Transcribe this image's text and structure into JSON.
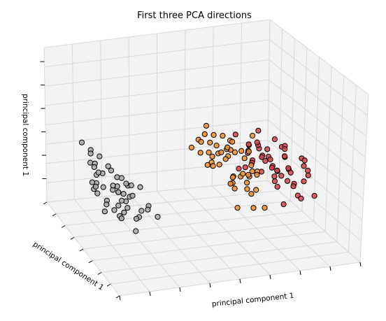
{
  "chart_data": {
    "type": "scatter",
    "projection": "3d",
    "title": "First three PCA directions",
    "xlabel": "principal component 1",
    "ylabel": "principal component 1",
    "zlabel": "principal component 1",
    "tick_labels": "hidden",
    "grid": true,
    "legend": "none",
    "colors": {
      "cluster_gray": "#a8a8a8",
      "cluster_orange": "#f08c28",
      "cluster_red": "#d8404a",
      "pane_face": "#f2f2f2",
      "grid_line": "#d8d8d8",
      "marker_edge": "#000000"
    },
    "series": [
      {
        "color": "#a8a8a8",
        "x": [
          -3.1,
          -2.9,
          -2.6,
          -2.7,
          -2.4,
          -2.5,
          -2.3,
          -2.2,
          -2.8,
          -2.5,
          -2.6,
          -2.4,
          -2.2,
          -2.7,
          -2.3,
          -2.5,
          -2.1,
          -2.6,
          -2.9,
          -2.4,
          -2.2,
          -2.3,
          -2.8,
          -2.5,
          -2.6,
          -2.1,
          -2.4,
          -2.7,
          -2.3,
          -2.2,
          -2.5,
          -2.6,
          -2.4,
          -2.8,
          -2.0,
          -2.3,
          -2.5,
          -2.7,
          -2.2,
          -2.6,
          -2.4,
          -2.3,
          -2.1,
          -2.8,
          -2.5,
          -2.4,
          -2.6,
          -2.2,
          -2.3,
          -2.7
        ],
        "y": [
          -0.5,
          0.6,
          -0.1,
          0.9,
          1.3,
          0.0,
          0.4,
          -0.6,
          0.2,
          1.0,
          -0.3,
          0.7,
          0.1,
          -0.8,
          1.2,
          0.5,
          -0.2,
          0.8,
          -0.4,
          0.3,
          1.1,
          -0.7,
          0.6,
          -0.5,
          0.2,
          0.9,
          -0.1,
          0.4,
          1.4,
          -0.3,
          0.7,
          0.0,
          1.0,
          -0.6,
          0.5,
          0.2,
          -0.4,
          0.8,
          1.2,
          -0.2,
          0.3,
          0.6,
          -0.8,
          1.1,
          0.1,
          -0.5,
          0.9,
          0.4,
          -0.1,
          0.7
        ],
        "z": [
          0.3,
          0.1,
          -0.2,
          0.5,
          0.0,
          0.6,
          -0.3,
          0.4,
          -0.1,
          0.2,
          0.7,
          -0.4,
          0.1,
          0.3,
          -0.2,
          0.5,
          0.0,
          -0.3,
          0.6,
          0.2,
          -0.1,
          0.4,
          0.0,
          -0.2,
          0.3,
          0.1,
          0.5,
          -0.4,
          0.2,
          0.6,
          -0.1,
          0.3,
          0.0,
          0.4,
          -0.3,
          0.1,
          0.5,
          -0.2,
          0.2,
          0.0,
          0.4,
          -0.1,
          0.3,
          0.6,
          -0.3,
          0.1,
          0.2,
          -0.2,
          0.5,
          0.0
        ]
      },
      {
        "color": "#f08c28",
        "x": [
          0.2,
          0.5,
          0.8,
          1.0,
          0.4,
          0.6,
          1.2,
          0.9,
          0.3,
          0.7,
          1.1,
          0.5,
          0.8,
          0.6,
          1.3,
          0.4,
          0.9,
          0.7,
          1.0,
          0.2,
          0.6,
          1.1,
          0.8,
          0.5,
          0.3,
          0.9,
          1.2,
          0.7,
          0.4,
          1.0,
          0.6,
          0.8,
          0.5,
          1.1,
          0.9,
          0.3,
          0.7,
          1.0,
          0.6,
          0.4,
          0.8,
          1.2,
          0.5,
          0.9,
          0.7,
          1.0,
          0.6,
          0.3,
          0.8,
          1.1
        ],
        "y": [
          -0.6,
          0.2,
          -0.3,
          0.8,
          0.5,
          -0.9,
          0.1,
          -0.4,
          0.9,
          0.3,
          -0.2,
          0.6,
          -0.7,
          1.0,
          0.0,
          -0.5,
          0.4,
          -0.1,
          0.7,
          0.2,
          -0.8,
          0.5,
          0.1,
          -0.3,
          0.6,
          -0.6,
          0.3,
          0.9,
          -0.2,
          0.0,
          0.4,
          -0.5,
          0.8,
          -0.1,
          0.2,
          -0.4,
          0.6,
          -0.7,
          0.1,
          0.3,
          -0.2,
          0.7,
          0.5,
          -0.3,
          0.0,
          0.4,
          -0.6,
          0.2,
          0.8,
          -0.1
        ],
        "z": [
          0.9,
          0.6,
          1.1,
          0.4,
          1.3,
          0.8,
          0.2,
          1.0,
          0.5,
          1.2,
          0.7,
          0.3,
          1.0,
          0.6,
          1.4,
          0.1,
          0.8,
          1.1,
          0.5,
          0.9,
          0.3,
          0.7,
          1.2,
          0.4,
          0.6,
          1.0,
          0.2,
          0.8,
          1.3,
          0.5,
          0.9,
          0.4,
          0.7,
          1.1,
          0.3,
          0.6,
          1.0,
          0.2,
          0.8,
          0.5,
          1.2,
          0.4,
          0.9,
          0.7,
          0.3,
          1.0,
          0.6,
          0.8,
          0.2,
          0.5
        ]
      },
      {
        "color": "#d8404a",
        "x": [
          1.6,
          1.9,
          2.2,
          2.5,
          1.8,
          2.0,
          2.4,
          2.7,
          1.7,
          2.1,
          2.3,
          2.6,
          1.9,
          2.2,
          2.8,
          1.6,
          2.0,
          2.4,
          2.5,
          1.8,
          2.1,
          2.7,
          2.3,
          1.9,
          2.6,
          2.0,
          2.2,
          2.4,
          1.7,
          2.5,
          2.1,
          2.3,
          1.8,
          2.6,
          2.0,
          2.4,
          2.2,
          1.9,
          2.7,
          2.1,
          2.5,
          2.3,
          1.8,
          2.0,
          2.6,
          2.2,
          2.4,
          1.9,
          2.1,
          2.3
        ],
        "y": [
          0.5,
          -0.1,
          0.8,
          0.2,
          -0.4,
          0.6,
          1.0,
          -0.2,
          0.3,
          0.9,
          -0.5,
          0.4,
          0.7,
          -0.3,
          0.1,
          0.8,
          0.0,
          0.5,
          -0.6,
          1.1,
          0.2,
          -0.1,
          0.6,
          0.4,
          -0.3,
          0.9,
          0.1,
          -0.4,
          0.7,
          0.3,
          -0.2,
          0.5,
          0.0,
          0.8,
          -0.5,
          0.2,
          0.6,
          -0.1,
          0.4,
          1.0,
          0.3,
          -0.3,
          0.7,
          0.1,
          0.5,
          -0.2,
          0.9,
          0.2,
          0.6,
          -0.4
        ],
        "z": [
          0.6,
          0.2,
          0.9,
          0.4,
          0.0,
          0.7,
          0.3,
          0.5,
          1.0,
          0.1,
          0.6,
          0.8,
          0.2,
          0.4,
          0.7,
          0.0,
          0.5,
          0.9,
          0.3,
          0.6,
          0.1,
          0.8,
          0.4,
          0.2,
          0.7,
          0.5,
          0.3,
          0.9,
          0.1,
          0.6,
          0.4,
          0.2,
          0.8,
          0.0,
          0.5,
          0.7,
          0.3,
          0.6,
          0.2,
          0.4,
          0.8,
          0.1,
          0.5,
          0.3,
          0.7,
          0.6,
          0.2,
          0.9,
          0.4,
          0.1
        ]
      }
    ]
  }
}
